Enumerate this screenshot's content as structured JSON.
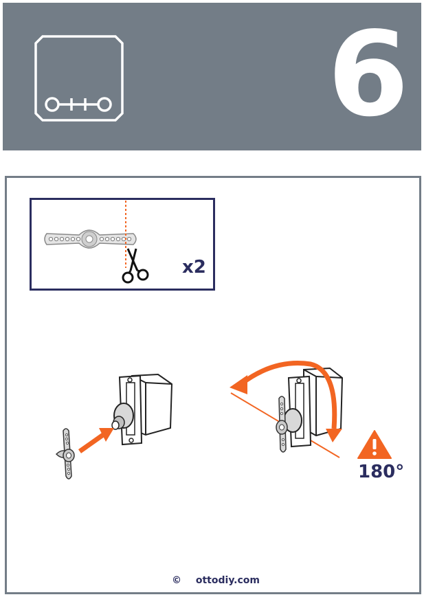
{
  "header": {
    "logo_text": "o++o",
    "step_number": "6"
  },
  "inset": {
    "quantity": "x2"
  },
  "warning": {
    "angle": "180°"
  },
  "footer": {
    "copyright_symbol": "©",
    "website": "ottodiy.com"
  },
  "colors": {
    "header_bg": "#737d87",
    "accent": "#f26522",
    "navy": "#2b2d5f"
  }
}
